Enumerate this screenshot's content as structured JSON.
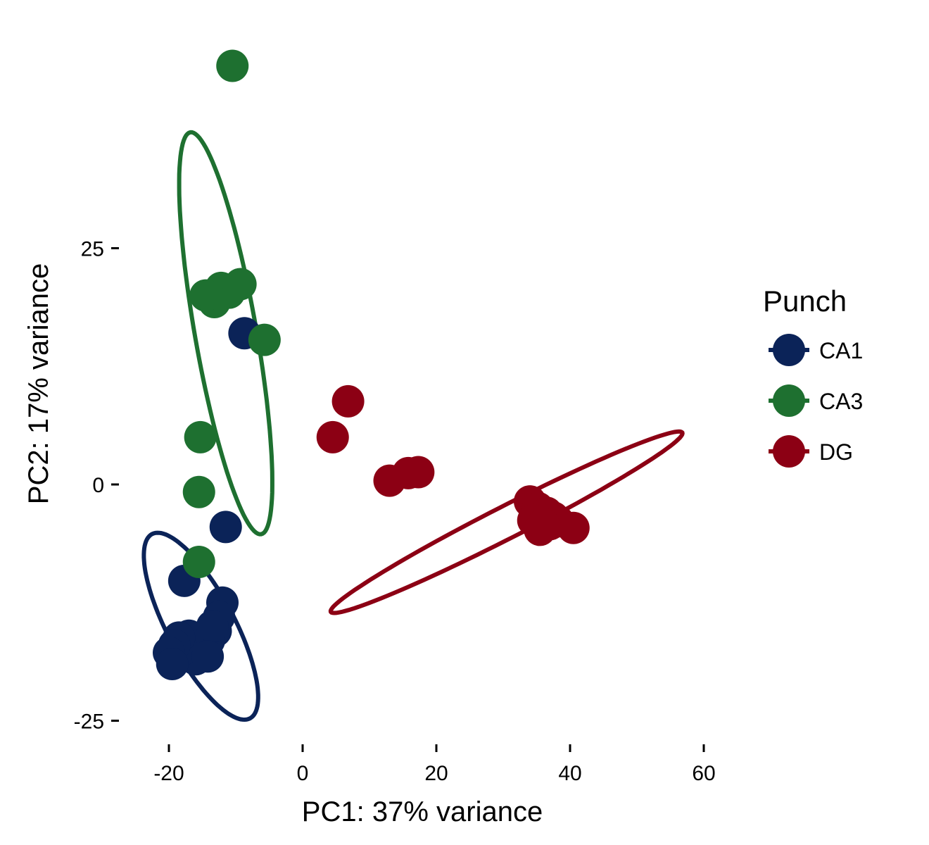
{
  "chart_data": {
    "type": "scatter",
    "xlabel": "PC1: 37% variance",
    "ylabel": "PC2: 17% variance",
    "xlim": [
      -24,
      62
    ],
    "ylim": [
      -27,
      45
    ],
    "x_ticks": [
      -20,
      0,
      20,
      40,
      60
    ],
    "y_ticks": [
      -25,
      0,
      25
    ],
    "grid": false,
    "legend": {
      "title": "Punch",
      "placement": "right"
    },
    "series": [
      {
        "name": "CA1",
        "color": "#0b2358",
        "points": [
          {
            "x": -8.7,
            "y": 16.0
          },
          {
            "x": -11.5,
            "y": -4.5
          },
          {
            "x": -17.7,
            "y": -10.2
          },
          {
            "x": -12.0,
            "y": -12.5
          },
          {
            "x": -12.5,
            "y": -14.0
          },
          {
            "x": -13.0,
            "y": -15.5
          },
          {
            "x": -14.0,
            "y": -16.5
          },
          {
            "x": -14.5,
            "y": -17.0
          },
          {
            "x": -15.0,
            "y": -17.5
          },
          {
            "x": -16.0,
            "y": -18.5
          },
          {
            "x": -16.5,
            "y": -17.0
          },
          {
            "x": -17.0,
            "y": -16.0
          },
          {
            "x": -18.0,
            "y": -17.5
          },
          {
            "x": -18.5,
            "y": -16.2
          },
          {
            "x": -19.2,
            "y": -17.0
          },
          {
            "x": -20.0,
            "y": -17.8
          },
          {
            "x": -19.5,
            "y": -19.0
          },
          {
            "x": -13.5,
            "y": -15.0
          },
          {
            "x": -14.2,
            "y": -18.2
          }
        ],
        "ellipse": {
          "cx": -15.2,
          "cy": -15.0,
          "rx": 15.6,
          "ry": 5.0,
          "angle_deg": 118
        }
      },
      {
        "name": "CA3",
        "color": "#1e7030",
        "points": [
          {
            "x": -10.5,
            "y": 44.3
          },
          {
            "x": -9.3,
            "y": 21.2
          },
          {
            "x": -11.0,
            "y": 20.3
          },
          {
            "x": -12.2,
            "y": 20.8
          },
          {
            "x": -13.2,
            "y": 19.3
          },
          {
            "x": -14.5,
            "y": 20.0
          },
          {
            "x": -5.7,
            "y": 15.3
          },
          {
            "x": -15.3,
            "y": 5.0
          },
          {
            "x": -15.5,
            "y": -0.8
          },
          {
            "x": -15.5,
            "y": -8.2
          }
        ],
        "ellipse": {
          "cx": -11.5,
          "cy": 16.0,
          "rx": 30.5,
          "ry": 4.6,
          "angle_deg": 100
        }
      },
      {
        "name": "DG",
        "color": "#8c0014",
        "points": [
          {
            "x": 6.8,
            "y": 8.8
          },
          {
            "x": 4.5,
            "y": 5.0
          },
          {
            "x": 13.0,
            "y": 0.4
          },
          {
            "x": 15.8,
            "y": 1.2
          },
          {
            "x": 17.3,
            "y": 1.3
          },
          {
            "x": 34.0,
            "y": -1.8
          },
          {
            "x": 35.2,
            "y": -2.5
          },
          {
            "x": 36.5,
            "y": -3.0
          },
          {
            "x": 37.5,
            "y": -3.5
          },
          {
            "x": 34.5,
            "y": -3.8
          },
          {
            "x": 35.5,
            "y": -4.8
          },
          {
            "x": 37.0,
            "y": -4.2
          },
          {
            "x": 38.2,
            "y": -3.9
          },
          {
            "x": 40.5,
            "y": -4.6
          },
          {
            "x": 36.0,
            "y": -4.2
          }
        ],
        "ellipse": {
          "cx": 30.5,
          "cy": -4.0,
          "rx": 29.5,
          "ry": 2.4,
          "angle_deg": 27
        }
      }
    ]
  }
}
